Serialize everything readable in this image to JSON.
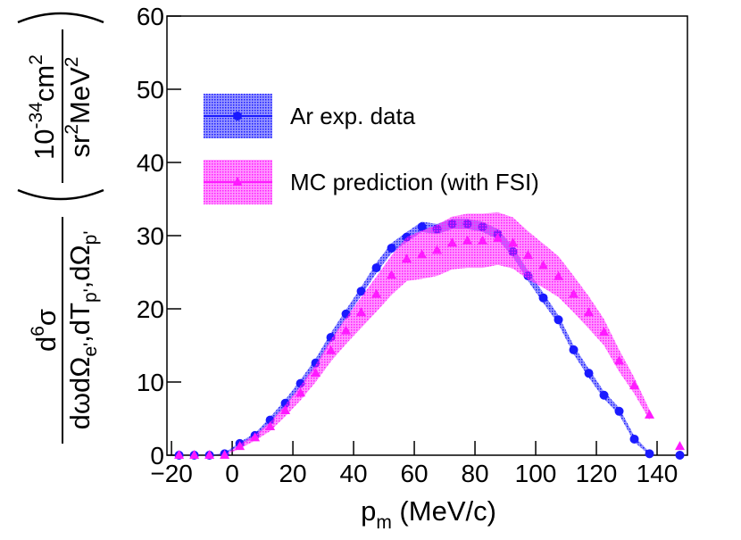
{
  "chart_data": {
    "type": "scatter",
    "x": [
      -17.5,
      -12.5,
      -7.5,
      -2.5,
      2.5,
      7.5,
      12.5,
      17.5,
      22.5,
      27.5,
      32.5,
      37.5,
      42.5,
      47.5,
      52.5,
      57.5,
      62.5,
      67.5,
      72.5,
      77.5,
      82.5,
      87.5,
      92.5,
      97.5,
      102.5,
      107.5,
      112.5,
      117.5,
      122.5,
      127.5,
      132.5,
      137.5,
      142.5,
      147.5
    ],
    "series": [
      {
        "name": "Ar exp. data",
        "color": "#1a1aff",
        "marker": "circle",
        "values": [
          0,
          0,
          0,
          0.2,
          1.6,
          2.7,
          4.8,
          7.1,
          9.8,
          12.6,
          16.1,
          19.3,
          22.4,
          25.6,
          28.3,
          29.8,
          31.2,
          30.9,
          31.6,
          31.6,
          31.2,
          30.2,
          27.8,
          24.5,
          21.5,
          18.5,
          14.4,
          11.2,
          8.2,
          6.0,
          2.2,
          0.2,
          null,
          0
        ],
        "errors": [
          0,
          0,
          0,
          0.1,
          0.2,
          0.3,
          0.4,
          0.5,
          0.5,
          0.6,
          0.6,
          0.6,
          0.6,
          0.7,
          0.7,
          0.7,
          0.7,
          0.7,
          0.7,
          0.7,
          0.7,
          0.7,
          0.7,
          0.7,
          0.7,
          0.6,
          0.6,
          0.6,
          0.5,
          0.5,
          0.4,
          0.2,
          null,
          0
        ]
      },
      {
        "name": "MC prediction (with FSI)",
        "color": "#ff1aff",
        "marker": "triangle",
        "values": [
          0,
          0,
          0,
          0,
          1.2,
          2.4,
          3.9,
          6.1,
          8.5,
          11.2,
          14.3,
          17.0,
          19.5,
          22.0,
          24.6,
          26.8,
          27.4,
          28.0,
          29.0,
          29.3,
          29.3,
          29.6,
          29.0,
          27.3,
          25.9,
          24.4,
          22.0,
          19.5,
          16.8,
          12.9,
          9.5,
          5.5,
          null,
          1.2
        ],
        "errors": [
          0,
          0,
          0,
          0,
          0.3,
          0.4,
          0.6,
          0.8,
          1.0,
          1.2,
          1.5,
          1.8,
          2.1,
          2.4,
          2.7,
          3.0,
          3.3,
          3.5,
          3.6,
          3.7,
          3.7,
          3.6,
          3.5,
          3.3,
          3.0,
          2.8,
          2.5,
          2.2,
          1.8,
          1.5,
          1.1,
          0.7,
          null,
          0.3
        ]
      }
    ],
    "xlabel": [
      "p",
      "m",
      " (MeV/c)"
    ],
    "ylabel": {
      "numerator": [
        "d",
        "6",
        "σ"
      ],
      "denominator": [
        "dωdΩ",
        "e'",
        ",dT",
        "p'",
        ",dΩ",
        "p'"
      ],
      "unit_numerator": [
        "10",
        "-34",
        "cm",
        "2"
      ],
      "unit_denominator": [
        "sr",
        "2",
        "MeV",
        "2"
      ]
    },
    "xlim": [
      -21.5,
      150
    ],
    "ylim": [
      0,
      60
    ],
    "xticks": [
      {
        "value": -20,
        "label": "−20"
      },
      0,
      20,
      40,
      60,
      80,
      100,
      120,
      140
    ],
    "yticks": [
      0,
      10,
      20,
      30,
      40,
      50,
      60
    ],
    "legend": "upper left"
  }
}
